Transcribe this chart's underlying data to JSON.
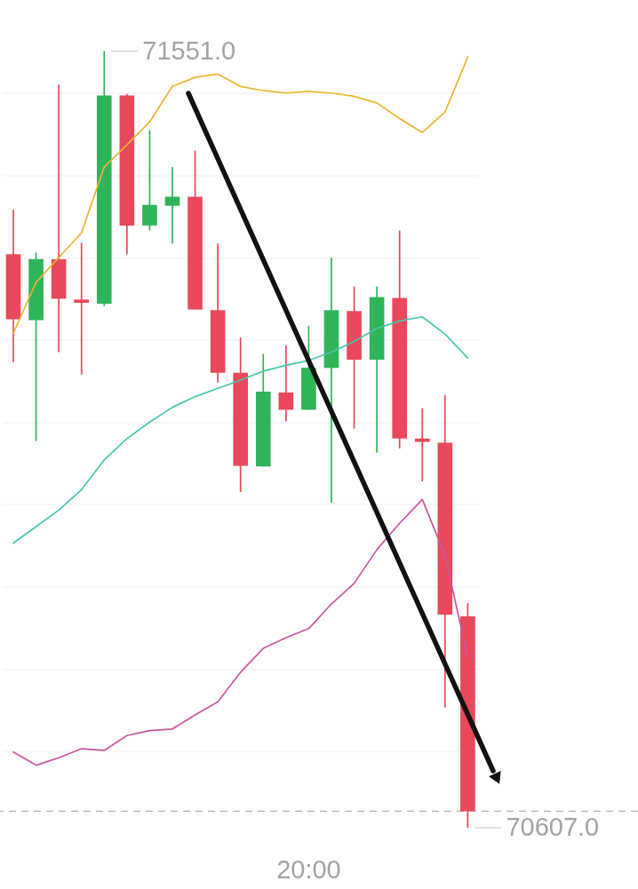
{
  "chart_data": {
    "type": "candlestick",
    "categories": [
      null,
      null,
      null,
      null,
      null,
      null,
      null,
      null,
      null,
      null,
      null,
      null,
      null,
      "20:00",
      null,
      null,
      null,
      null,
      null,
      null,
      null
    ],
    "ohlc": [
      [
        71304,
        71358,
        71173,
        71225
      ],
      [
        71224,
        71306,
        71077,
        71298
      ],
      [
        71298,
        71510,
        71185,
        71250
      ],
      [
        71249,
        71318,
        71158,
        71245
      ],
      [
        71244,
        71551,
        71241,
        71497
      ],
      [
        71497,
        71499,
        71304,
        71339
      ],
      [
        71339,
        71455,
        71333,
        71364
      ],
      [
        71363,
        71410,
        71317,
        71374
      ],
      [
        71374,
        71430,
        71237,
        71237
      ],
      [
        71236,
        71317,
        71148,
        71160
      ],
      [
        71160,
        71203,
        71015,
        71047
      ],
      [
        71046,
        71183,
        71046,
        71137
      ],
      [
        71136,
        71193,
        71101,
        71115
      ],
      [
        71115,
        71217,
        71115,
        71166
      ],
      [
        71166,
        71300,
        71002,
        71236
      ],
      [
        71235,
        71265,
        71092,
        71176
      ],
      [
        71176,
        71265,
        71063,
        71252
      ],
      [
        71251,
        71333,
        71068,
        71080
      ],
      [
        71080,
        71117,
        71028,
        71076
      ],
      [
        71075,
        71133,
        70753,
        70866
      ],
      [
        70864,
        70880,
        70607,
        70627
      ]
    ],
    "colors": [
      "#e9485a",
      "#2fb45a",
      "#e9485a",
      "#e9485a",
      "#2fb45a",
      "#e9485a",
      "#2fb45a",
      "#2fb45a",
      "#e9485a",
      "#e9485a",
      "#e9485a",
      "#2fb45a",
      "#e9485a",
      "#2fb45a",
      "#2fb45a",
      "#e9485a",
      "#2fb45a",
      "#e9485a",
      "#e9485a",
      "#e9485a",
      "#e9485a"
    ],
    "series": [
      {
        "type": "line",
        "color": "#e9b52e",
        "values": [
          71208,
          71270,
          71300,
          71330,
          71410,
          71437,
          71465,
          71508,
          71519,
          71523,
          71508,
          71503,
          71500,
          71502,
          71500,
          71496,
          71488,
          71469,
          71452,
          71477,
          71544
        ]
      },
      {
        "type": "line",
        "color": "#46c8ae",
        "values": [
          70953,
          70973,
          70993,
          71018,
          71054,
          71080,
          71100,
          71118,
          71131,
          71141,
          71151,
          71162,
          71169,
          71175,
          71185,
          71198,
          71214,
          71223,
          71228,
          71207,
          71178
        ]
      },
      {
        "type": "line",
        "color": "#c8579e",
        "values": [
          70699,
          70683,
          70692,
          70703,
          70701,
          70719,
          70725,
          70727,
          70744,
          70760,
          70796,
          70825,
          70838,
          70849,
          70879,
          70904,
          70945,
          70977,
          71006,
          70938,
          70814
        ]
      }
    ],
    "annotations": [
      "71551.0",
      "70607.0"
    ],
    "yticks": [
      {
        "value": 70700,
        "label": null
      },
      {
        "value": 70800,
        "label": null
      },
      {
        "value": 70900,
        "label": null
      },
      {
        "value": 71000,
        "label": null
      },
      {
        "value": 71100,
        "label": null
      },
      {
        "value": 71200,
        "label": null
      },
      {
        "value": 71300,
        "label": null
      },
      {
        "value": 71400,
        "label": null
      },
      {
        "value": 71500,
        "label": null
      }
    ],
    "grid": "y",
    "tick_labels": "x",
    "ref_lines": [
      {
        "axis": "y",
        "value": 70627,
        "color": "#b3b3b3",
        "line_style": "dashed"
      }
    ]
  }
}
